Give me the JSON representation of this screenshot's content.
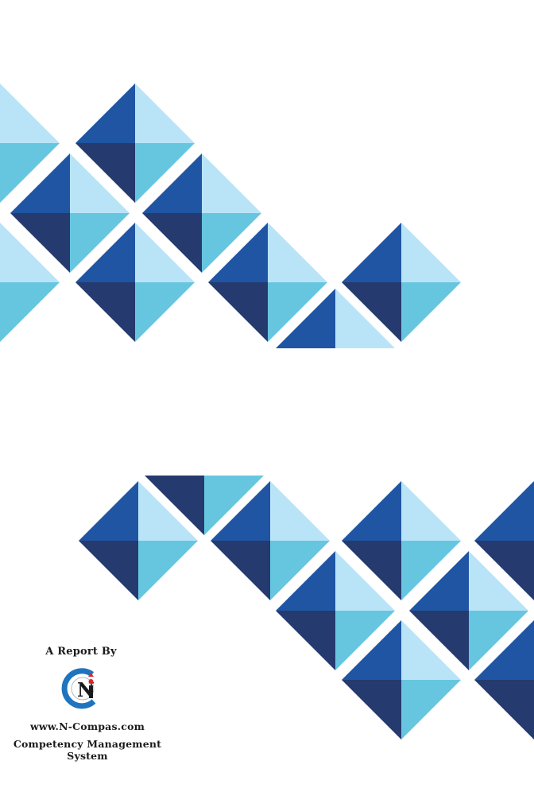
{
  "colors": {
    "dark_navy": "#253a6e",
    "royal_blue": "#1f55a3",
    "sky": "#66c6df",
    "pale_sky": "#b9e4f7",
    "logo_blue": "#1e74bf",
    "logo_red": "#d8282e"
  },
  "credits": {
    "report_by": "A Report By",
    "website": "www.N-Compas.com",
    "tagline": "Competency Management System"
  },
  "logo": {
    "icon": "n-compas-logo",
    "letter": "N"
  }
}
